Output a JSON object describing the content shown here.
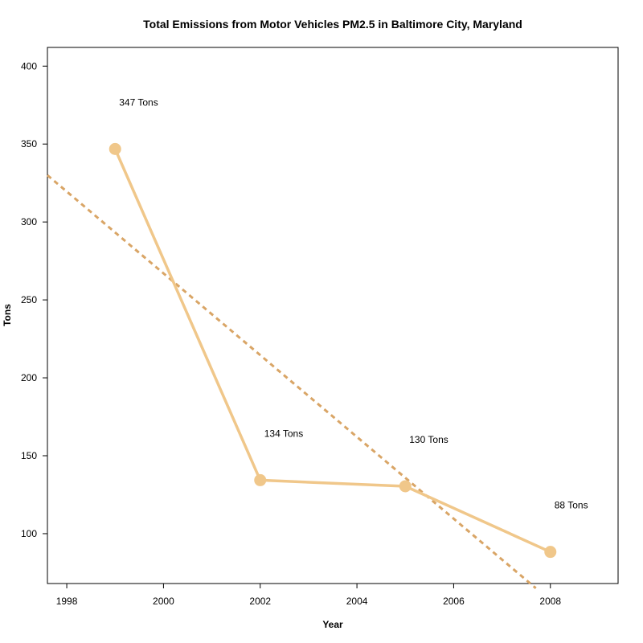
{
  "chart_data": {
    "type": "line",
    "title": "Total Emissions from Motor Vehicles PM2.5 in Baltimore City, Maryland",
    "xlabel": "Year",
    "ylabel": "Tons",
    "x": [
      1999,
      2002,
      2005,
      2008
    ],
    "series": [
      {
        "values": [
          346.82,
          134.31,
          130.43,
          88.28
        ],
        "color": "#f0c78a"
      }
    ],
    "data_labels": [
      "347 Tons",
      "134 Tons",
      "130 Tons",
      "88 Tons"
    ],
    "trend_line": {
      "style": "dashed",
      "color": "#d9a566",
      "from": [
        1997.6,
        330
      ],
      "to": [
        2007.7,
        65
      ]
    },
    "xlim": [
      1997.6,
      2009.4
    ],
    "ylim": [
      68,
      412
    ],
    "x_ticks": [
      "1998",
      "2000",
      "2002",
      "2004",
      "2006",
      "2008"
    ],
    "y_ticks": [
      "100",
      "150",
      "200",
      "250",
      "300",
      "350",
      "400"
    ],
    "grid": false
  }
}
